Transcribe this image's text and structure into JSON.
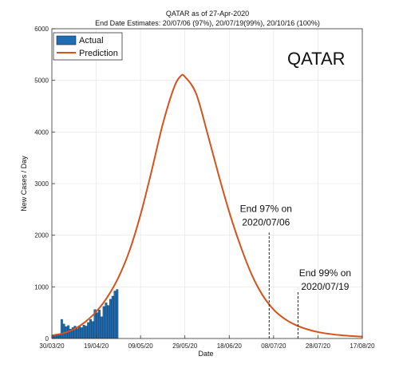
{
  "chart_data": {
    "type": "bar+line",
    "title": "QATAR as of 27-Apr-2020",
    "subtitle": "End Date Estimates: 20/07/06 (97%), 20/07/19(99%), 20/10/16 (100%)",
    "country_label": "QATAR",
    "xlabel": "Date",
    "ylabel": "New Cases / Day",
    "ylim": [
      0,
      6000
    ],
    "yticks": [
      0,
      1000,
      2000,
      3000,
      4000,
      5000,
      6000
    ],
    "xlim": [
      "2020-03-30",
      "2020-08-17"
    ],
    "xticks": [
      "2020-03-30",
      "2020-04-19",
      "2020-05-09",
      "2020-05-29",
      "2020-06-18",
      "2020-07-08",
      "2020-07-28",
      "2020-08-17"
    ],
    "xtick_labels": [
      "30/03/20",
      "19/04/20",
      "09/05/20",
      "29/05/20",
      "18/06/20",
      "08/07/20",
      "28/07/20",
      "17/08/20"
    ],
    "grid": true,
    "legend_position": "top-left",
    "series": [
      {
        "name": "Actual",
        "kind": "bar",
        "color": "#1f6db3",
        "start_date": "2020-03-30",
        "values": [
          50,
          60,
          70,
          90,
          370,
          280,
          230,
          250,
          180,
          210,
          240,
          190,
          230,
          210,
          260,
          240,
          310,
          370,
          330,
          560,
          500,
          550,
          420,
          620,
          690,
          640,
          760,
          820,
          920,
          950
        ]
      },
      {
        "name": "Prediction",
        "kind": "line",
        "color": "#d4541d",
        "points": [
          [
            "2020-03-30",
            60
          ],
          [
            "2020-04-04",
            100
          ],
          [
            "2020-04-09",
            180
          ],
          [
            "2020-04-14",
            320
          ],
          [
            "2020-04-19",
            520
          ],
          [
            "2020-04-24",
            800
          ],
          [
            "2020-04-29",
            1180
          ],
          [
            "2020-05-04",
            1700
          ],
          [
            "2020-05-09",
            2400
          ],
          [
            "2020-05-14",
            3250
          ],
          [
            "2020-05-19",
            4150
          ],
          [
            "2020-05-24",
            4850
          ],
          [
            "2020-05-27",
            5080
          ],
          [
            "2020-05-29",
            5070
          ],
          [
            "2020-06-03",
            4750
          ],
          [
            "2020-06-08",
            4000
          ],
          [
            "2020-06-13",
            3200
          ],
          [
            "2020-06-18",
            2450
          ],
          [
            "2020-06-23",
            1800
          ],
          [
            "2020-06-28",
            1250
          ],
          [
            "2020-07-03",
            840
          ],
          [
            "2020-07-08",
            560
          ],
          [
            "2020-07-13",
            380
          ],
          [
            "2020-07-18",
            260
          ],
          [
            "2020-07-23",
            180
          ],
          [
            "2020-07-28",
            125
          ],
          [
            "2020-08-02",
            90
          ],
          [
            "2020-08-07",
            65
          ],
          [
            "2020-08-12",
            48
          ],
          [
            "2020-08-17",
            35
          ]
        ]
      }
    ],
    "annotations": [
      {
        "line1": "End 97% on",
        "line2": "2020/07/06",
        "date": "2020-07-06",
        "from_y": 0,
        "to_y": 2050
      },
      {
        "line1": "End 99% on",
        "line2": "2020/07/19",
        "date": "2020-07-19",
        "from_y": 0,
        "to_y": 900
      }
    ]
  }
}
